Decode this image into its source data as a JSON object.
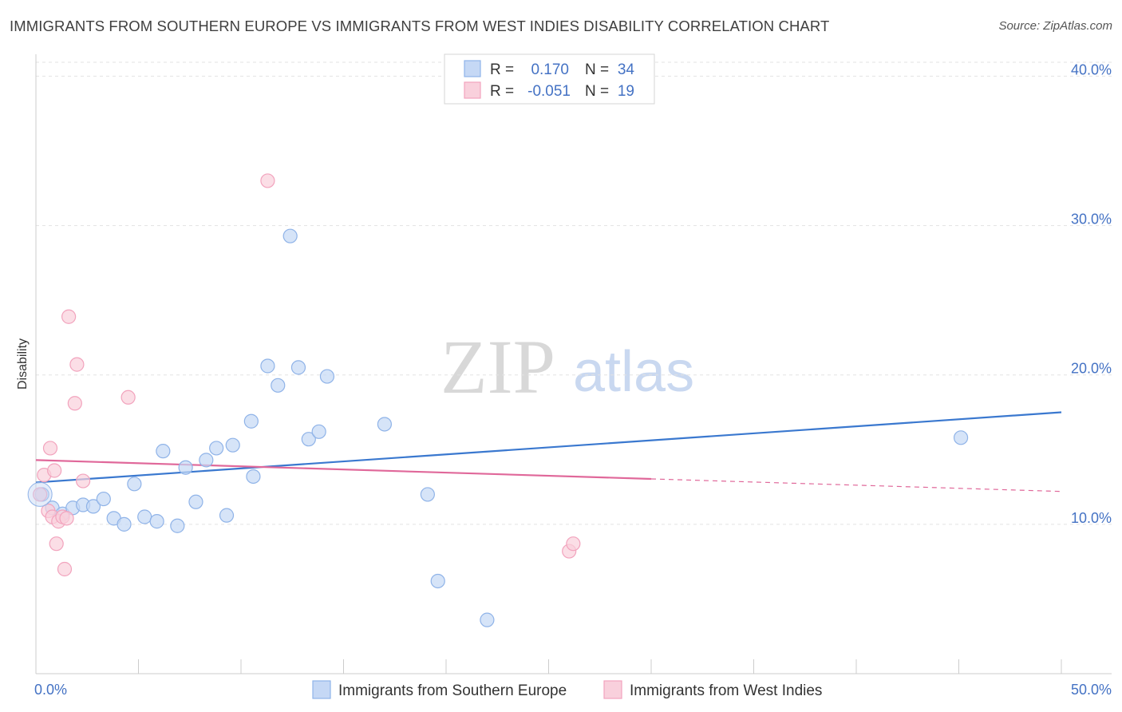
{
  "title": "IMMIGRANTS FROM SOUTHERN EUROPE VS IMMIGRANTS FROM WEST INDIES DISABILITY CORRELATION CHART",
  "source": "Source: ZipAtlas.com",
  "watermark": {
    "zip": "ZIP",
    "atlas": "atlas"
  },
  "chart_data": {
    "type": "scatter",
    "xlabel": "",
    "ylabel": "Disability",
    "xlim": [
      0,
      50
    ],
    "ylim": [
      0,
      42
    ],
    "x_tick_labels": [
      {
        "value": 0,
        "label": "0.0%"
      },
      {
        "value": 50,
        "label": "50.0%"
      }
    ],
    "x_minor_ticks": [
      5,
      10,
      15,
      20,
      25,
      30,
      35,
      40,
      45
    ],
    "y_ticks": [
      {
        "value": 10,
        "label": "10.0%"
      },
      {
        "value": 20,
        "label": "20.0%"
      },
      {
        "value": 30,
        "label": "30.0%"
      },
      {
        "value": 40,
        "label": "40.0%"
      }
    ],
    "grid": true,
    "legend_position": "top-center",
    "legend": [
      {
        "r_label": "R =",
        "r_value": "0.170",
        "n_label": "N =",
        "n_value": "34"
      },
      {
        "r_label": "R =",
        "r_value": "-0.051",
        "n_label": "N =",
        "n_value": "19"
      }
    ],
    "series": [
      {
        "name": "Immigrants from Southern Europe",
        "color": "#8fb3e8",
        "fill": "#c5d8f5",
        "line_color": "#3a78cf",
        "trend": {
          "x0": 0,
          "y0": 12.8,
          "x1": 50,
          "y1": 17.5,
          "solid_until": 50
        },
        "points": [
          [
            0.3,
            12.0
          ],
          [
            0.8,
            11.1
          ],
          [
            1.3,
            10.7
          ],
          [
            1.8,
            11.1
          ],
          [
            2.3,
            11.3
          ],
          [
            2.8,
            11.2
          ],
          [
            3.3,
            11.7
          ],
          [
            3.8,
            10.4
          ],
          [
            4.3,
            10.0
          ],
          [
            4.8,
            12.7
          ],
          [
            5.3,
            10.5
          ],
          [
            5.9,
            10.2
          ],
          [
            6.2,
            14.9
          ],
          [
            6.9,
            9.9
          ],
          [
            7.3,
            13.8
          ],
          [
            7.8,
            11.5
          ],
          [
            8.3,
            14.3
          ],
          [
            8.8,
            15.1
          ],
          [
            9.3,
            10.6
          ],
          [
            9.6,
            15.3
          ],
          [
            10.5,
            16.9
          ],
          [
            10.6,
            13.2
          ],
          [
            11.3,
            20.6
          ],
          [
            11.8,
            19.3
          ],
          [
            12.4,
            29.3
          ],
          [
            12.8,
            20.5
          ],
          [
            13.3,
            15.7
          ],
          [
            13.8,
            16.2
          ],
          [
            14.2,
            19.9
          ],
          [
            17.0,
            16.7
          ],
          [
            19.1,
            12.0
          ],
          [
            19.6,
            6.2
          ],
          [
            22.0,
            3.6
          ],
          [
            45.1,
            15.8
          ]
        ]
      },
      {
        "name": "Immigrants from West Indies",
        "color": "#f2a3bd",
        "fill": "#f9d0dc",
        "line_color": "#e0689a",
        "trend": {
          "x0": 0,
          "y0": 14.3,
          "x1": 50,
          "y1": 12.2,
          "solid_until": 30
        },
        "points": [
          [
            0.2,
            12.0
          ],
          [
            0.4,
            13.3
          ],
          [
            0.6,
            10.9
          ],
          [
            0.7,
            15.1
          ],
          [
            0.8,
            10.5
          ],
          [
            0.9,
            13.6
          ],
          [
            1.0,
            8.7
          ],
          [
            1.1,
            10.2
          ],
          [
            1.3,
            10.5
          ],
          [
            1.4,
            7.0
          ],
          [
            1.5,
            10.4
          ],
          [
            1.6,
            23.9
          ],
          [
            1.9,
            18.1
          ],
          [
            2.0,
            20.7
          ],
          [
            2.3,
            12.9
          ],
          [
            4.5,
            18.5
          ],
          [
            11.3,
            33.0
          ],
          [
            26.0,
            8.2
          ],
          [
            26.2,
            8.7
          ]
        ]
      }
    ]
  }
}
